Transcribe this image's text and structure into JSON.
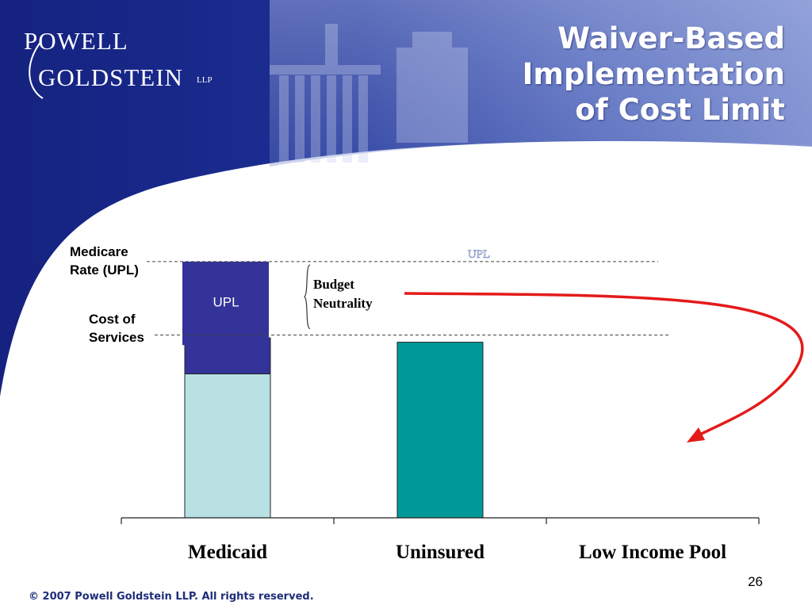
{
  "logo": {
    "line1": "POWELL",
    "line2": "GOLDSTEIN",
    "suffix": "LLP"
  },
  "title": {
    "line1": "Waiver-Based",
    "line2": "Implementation",
    "line3": "of Cost Limit"
  },
  "annotations": {
    "medicare_rate_line1": "Medicare",
    "medicare_rate_line2": "Rate (UPL)",
    "cost_of_services_line1": "Cost of",
    "cost_of_services_line2": "Services",
    "budget_line1": "Budget",
    "budget_line2": "Neutrality",
    "upl_bar_label": "UPL",
    "upl_faint_label": "UPL"
  },
  "chart_data": {
    "type": "bar",
    "stacked": true,
    "categories": [
      "Medicaid",
      "Uninsured",
      "Low Income Pool"
    ],
    "series": [
      {
        "values": [
          100,
          0,
          0
        ],
        "color": "#b9e0e3"
      },
      {
        "values": [
          25,
          0,
          0
        ],
        "color": "#343399"
      },
      {
        "values": [
          0,
          122,
          0
        ],
        "color": "#009999"
      }
    ],
    "reference_lines": [
      {
        "value": 178,
        "label": "Medicare Rate (UPL)"
      },
      {
        "value": 127,
        "label": "Cost of Services"
      }
    ],
    "upl_block": {
      "category": "Medicaid",
      "from": 120,
      "to": 178
    },
    "ylim": [
      0,
      200
    ],
    "arrow_color": "#e31b1b"
  },
  "footer": {
    "page_number": "26",
    "copyright": "© 2007 Powell Goldstein LLP. All rights reserved."
  }
}
